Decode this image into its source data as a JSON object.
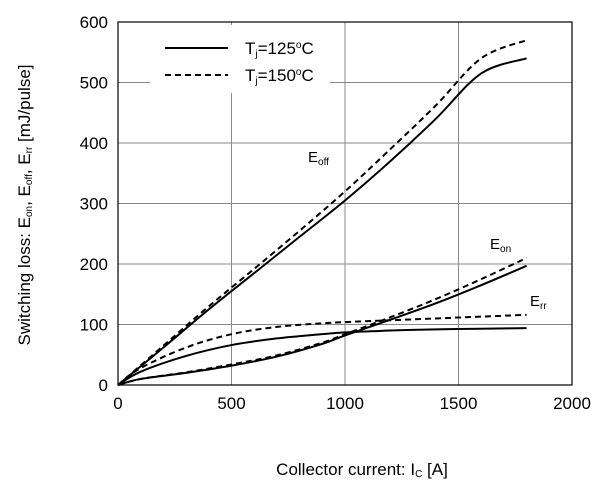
{
  "chart_data": {
    "type": "line",
    "title": "",
    "xlabel": "Collector current: I",
    "xlabel_sub": "C",
    "xlabel_unit": " [A]",
    "ylabel_parts": [
      "Switching loss: E",
      "on",
      ", E",
      "off",
      ", E",
      "rr",
      " [mJ/pulse]"
    ],
    "xlim": [
      0,
      2000
    ],
    "ylim": [
      0,
      600
    ],
    "xticks": [
      0,
      500,
      1000,
      1500,
      2000
    ],
    "yticks": [
      0,
      100,
      200,
      300,
      400,
      500,
      600
    ],
    "grid": true,
    "legend": {
      "position": "top-left",
      "entries": [
        {
          "prefix": "T",
          "sub": "j",
          "value": "=125",
          "sup": "o",
          "unit": "C",
          "style": "solid"
        },
        {
          "prefix": "T",
          "sub": "j",
          "value": "=150",
          "sup": "o",
          "unit": "C",
          "style": "dashed"
        }
      ]
    },
    "annotations": [
      {
        "main": "E",
        "sub": "off",
        "at": [
          1000,
          380
        ]
      },
      {
        "main": "E",
        "sub": "on",
        "at": [
          1580,
          225
        ]
      },
      {
        "main": "E",
        "sub": "rr",
        "at": [
          1720,
          125
        ]
      }
    ],
    "series": [
      {
        "group": "Eoff",
        "temp": "125",
        "style": "solid",
        "x": [
          0,
          200,
          400,
          600,
          800,
          1000,
          1200,
          1400,
          1600,
          1800
        ],
        "y": [
          0,
          62,
          125,
          185,
          245,
          305,
          370,
          440,
          515,
          540
        ]
      },
      {
        "group": "Eoff",
        "temp": "150",
        "style": "dashed",
        "x": [
          0,
          200,
          400,
          600,
          800,
          1000,
          1200,
          1400,
          1600,
          1800
        ],
        "y": [
          0,
          65,
          130,
          192,
          255,
          320,
          390,
          462,
          540,
          570
        ]
      },
      {
        "group": "Eon",
        "temp": "125",
        "style": "solid",
        "x": [
          0,
          100,
          300,
          500,
          700,
          900,
          1000,
          1200,
          1400,
          1600,
          1800
        ],
        "y": [
          0,
          10,
          20,
          32,
          47,
          68,
          82,
          108,
          135,
          165,
          197
        ]
      },
      {
        "group": "Eon",
        "temp": "150",
        "style": "dashed",
        "x": [
          0,
          100,
          300,
          500,
          700,
          900,
          1000,
          1200,
          1400,
          1600,
          1800
        ],
        "y": [
          0,
          10,
          21,
          34,
          49,
          70,
          84,
          112,
          142,
          175,
          210
        ]
      },
      {
        "group": "Err",
        "temp": "125",
        "style": "solid",
        "x": [
          0,
          100,
          300,
          500,
          700,
          900,
          1000,
          1200,
          1400,
          1600,
          1800
        ],
        "y": [
          0,
          22,
          48,
          66,
          77,
          84,
          87,
          90,
          92,
          93,
          94
        ]
      },
      {
        "group": "Err",
        "temp": "150",
        "style": "dashed",
        "x": [
          0,
          100,
          300,
          500,
          700,
          900,
          1000,
          1200,
          1400,
          1600,
          1800
        ],
        "y": [
          0,
          28,
          62,
          84,
          96,
          102,
          104,
          107,
          110,
          113,
          116
        ]
      }
    ]
  }
}
